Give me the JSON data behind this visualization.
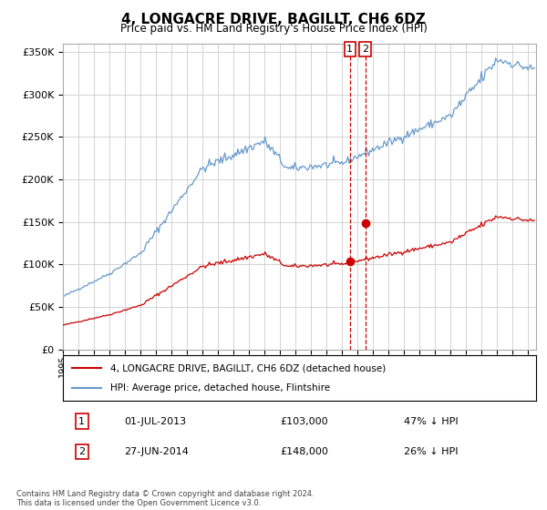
{
  "title": "4, LONGACRE DRIVE, BAGILLT, CH6 6DZ",
  "subtitle": "Price paid vs. HM Land Registry's House Price Index (HPI)",
  "legend_line1": "4, LONGACRE DRIVE, BAGILLT, CH6 6DZ (detached house)",
  "legend_line2": "HPI: Average price, detached house, Flintshire",
  "transaction1_label": "1",
  "transaction1_date": "01-JUL-2013",
  "transaction1_price": "£103,000",
  "transaction1_hpi": "47% ↓ HPI",
  "transaction1_x": 2013.5,
  "transaction1_y": 103000,
  "transaction2_label": "2",
  "transaction2_date": "27-JUN-2014",
  "transaction2_price": "£148,000",
  "transaction2_hpi": "26% ↓ HPI",
  "transaction2_x": 2014.5,
  "transaction2_y": 148000,
  "hpi_color": "#6699cc",
  "price_color": "#cc0000",
  "dashed_line_color": "#cc0000",
  "ylim_min": 0,
  "ylim_max": 360000,
  "yticks": [
    0,
    50000,
    100000,
    150000,
    200000,
    250000,
    300000,
    350000
  ],
  "xlim_min": 1995,
  "xlim_max": 2025.5,
  "footnote": "Contains HM Land Registry data © Crown copyright and database right 2024.\nThis data is licensed under the Open Government Licence v3.0.",
  "background_color": "#ffffff",
  "grid_color": "#cccccc"
}
